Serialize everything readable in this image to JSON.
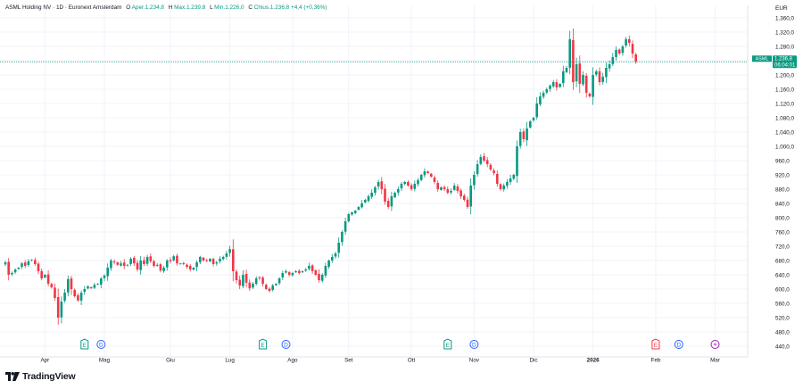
{
  "header": {
    "name": "ASML Holding NV · 1D · Euronext Amsterdam",
    "open_label": "O",
    "open_text": "Aper.1.234,8",
    "high_label": "H",
    "high_text": "Max.1.239,8",
    "low_label": "L",
    "low_text": "Min.1.226,0",
    "close_label": "C",
    "close_text": "Chius.1.236,8",
    "change_text": "+4,4 (+0,36%)"
  },
  "currency": "EUR",
  "price_tag": {
    "symbol": "ASML",
    "price": "1.236,8",
    "countdown": "06:04:01"
  },
  "brand": {
    "name": "TradingView"
  },
  "colors": {
    "up": "#089981",
    "down": "#f23645",
    "grid": "#f0f3fa",
    "axis_text": "#131722",
    "last_price_line": "#089981"
  },
  "icons": {
    "brand_logo": "tradingview-logo-icon",
    "earnings": "earnings-icon",
    "dividend": "dividend-icon",
    "split": "split-icon"
  },
  "chart_data": {
    "type": "candlestick",
    "grid": true,
    "y_range": [
      440,
      1360
    ],
    "y_ticks": [
      440,
      480,
      520,
      560,
      600,
      640,
      680,
      720,
      760,
      800,
      840,
      880,
      920,
      960,
      1000,
      1040,
      1080,
      1120,
      1160,
      1200,
      1240,
      1280,
      1320,
      1360
    ],
    "y_tick_labels": [
      "440,0",
      "480,0",
      "520,0",
      "560,0",
      "600,0",
      "640,0",
      "680,0",
      "720,0",
      "760,0",
      "800,0",
      "840,0",
      "880,0",
      "920,0",
      "960,0",
      "1.000,0",
      "1.040,0",
      "1.080,0",
      "1.120,0",
      "1.160,0",
      "1.200,0",
      "1.240,0",
      "1.280,0",
      "1.320,0",
      "1.360,0"
    ],
    "x_labels": [
      {
        "label": "Apr",
        "bar": 12
      },
      {
        "label": "Mag",
        "bar": 30
      },
      {
        "label": "Giu",
        "bar": 50
      },
      {
        "label": "Lug",
        "bar": 68
      },
      {
        "label": "Ago",
        "bar": 87
      },
      {
        "label": "Set",
        "bar": 104
      },
      {
        "label": "Ott",
        "bar": 123
      },
      {
        "label": "Nov",
        "bar": 142
      },
      {
        "label": "Dic",
        "bar": 160
      },
      {
        "label": "2026",
        "bar": 178
      },
      {
        "label": "Feb",
        "bar": 197
      },
      {
        "label": "Mar",
        "bar": 215
      }
    ],
    "events": [
      {
        "type": "E",
        "bar": 24
      },
      {
        "type": "D",
        "bar": 29
      },
      {
        "type": "E",
        "bar": 78
      },
      {
        "type": "D",
        "bar": 85
      },
      {
        "type": "E",
        "bar": 134
      },
      {
        "type": "D",
        "bar": 142
      },
      {
        "type": "E",
        "bar": 197
      },
      {
        "type": "D",
        "bar": 204
      },
      {
        "type": "S",
        "bar": 215
      }
    ],
    "last_close": 1236.8,
    "closes": [
      675,
      640,
      645,
      655,
      660,
      672,
      665,
      678,
      682,
      670,
      650,
      630,
      640,
      615,
      605,
      575,
      520,
      565,
      590,
      628,
      600,
      580,
      568,
      590,
      600,
      608,
      602,
      612,
      615,
      630,
      638,
      660,
      680,
      675,
      668,
      672,
      665,
      668,
      685,
      672,
      655,
      680,
      670,
      690,
      678,
      665,
      668,
      652,
      660,
      680,
      678,
      692,
      672,
      672,
      670,
      662,
      655,
      660,
      675,
      690,
      680,
      678,
      685,
      670,
      675,
      685,
      690,
      700,
      712,
      650,
      625,
      610,
      640,
      618,
      602,
      615,
      630,
      630,
      615,
      600,
      595,
      610,
      615,
      630,
      645,
      650,
      640,
      645,
      650,
      645,
      650,
      655,
      665,
      650,
      640,
      625,
      640,
      665,
      680,
      690,
      700,
      730,
      760,
      790,
      810,
      815,
      820,
      830,
      840,
      850,
      860,
      870,
      885,
      900,
      880,
      845,
      830,
      860,
      870,
      880,
      895,
      900,
      890,
      880,
      895,
      905,
      920,
      930,
      925,
      915,
      900,
      880,
      885,
      880,
      870,
      875,
      890,
      875,
      860,
      850,
      830,
      890,
      920,
      950,
      970,
      960,
      950,
      935,
      925,
      895,
      880,
      890,
      900,
      910,
      920,
      1000,
      1040,
      1020,
      1050,
      1070,
      1080,
      1120,
      1140,
      1150,
      1160,
      1170,
      1180,
      1165,
      1175,
      1210,
      1220,
      1300,
      1180,
      1230,
      1175,
      1200,
      1150,
      1140,
      1200,
      1210,
      1180,
      1195,
      1220,
      1230,
      1250,
      1270,
      1260,
      1280,
      1300,
      1290,
      1260,
      1236.8
    ]
  }
}
